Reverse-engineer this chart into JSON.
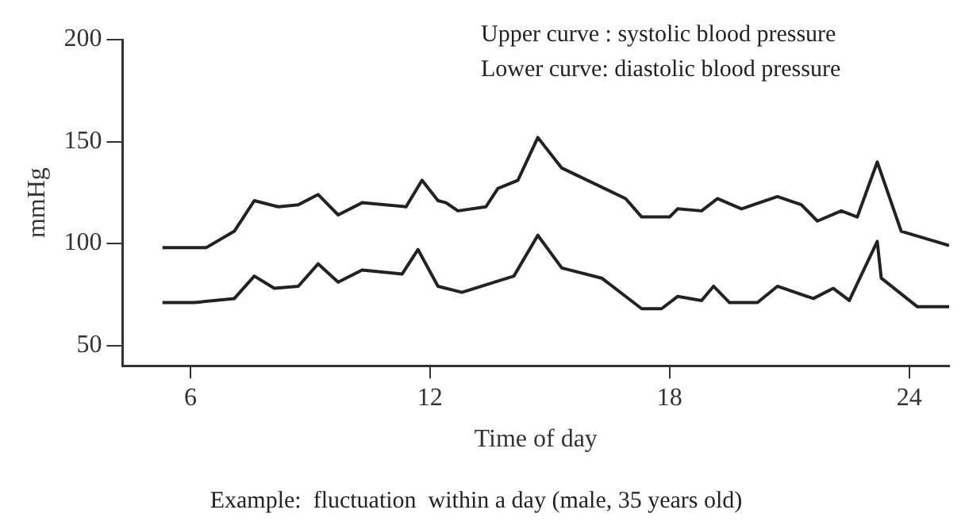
{
  "chart_data": {
    "type": "line",
    "xlabel": "Time of day",
    "ylabel": "mmHg",
    "annotations": [
      "Upper curve : systolic blood pressure",
      "Lower curve: diastolic blood pressure",
      "Example:  fluctuation  within a day (male, 35 years old)"
    ],
    "series": [
      {
        "color": "#222222",
        "x": [
          5.3,
          6.4,
          7.1,
          7.6,
          8.2,
          8.7,
          9.2,
          9.7,
          10.3,
          11.4,
          11.8,
          12.2,
          12.4,
          12.7,
          13.4,
          13.7,
          14.2,
          14.7,
          15.3,
          16.9,
          17.3,
          18.0,
          18.2,
          18.8,
          19.2,
          19.8,
          20.7,
          21.3,
          21.7,
          22.3,
          22.7,
          23.2,
          23.8,
          25.0
        ],
        "values": [
          98,
          98,
          106,
          121,
          118,
          119,
          124,
          114,
          120,
          118,
          131,
          121,
          120,
          116,
          118,
          127,
          131,
          152,
          137,
          122,
          113,
          113,
          117,
          116,
          122,
          117,
          123,
          119,
          111,
          116,
          113,
          140,
          106,
          99
        ]
      },
      {
        "color": "#222222",
        "x": [
          5.3,
          6.1,
          7.1,
          7.6,
          8.1,
          8.7,
          9.2,
          9.7,
          10.3,
          11.3,
          11.7,
          12.2,
          12.8,
          14.1,
          14.7,
          15.3,
          16.3,
          17.3,
          17.8,
          18.2,
          18.8,
          19.1,
          19.5,
          20.2,
          20.7,
          21.6,
          22.1,
          22.5,
          23.2,
          23.3,
          24.2,
          25.0
        ],
        "values": [
          71,
          71,
          73,
          84,
          78,
          79,
          90,
          81,
          87,
          85,
          97,
          79,
          76,
          84,
          104,
          88,
          83,
          68,
          68,
          74,
          72,
          79,
          71,
          71,
          79,
          73,
          78,
          72,
          101,
          83,
          69,
          69
        ]
      }
    ],
    "xlim": [
      4.3,
      25
    ],
    "xticks": [
      6,
      12,
      18,
      24
    ],
    "ylim": [
      40,
      200
    ],
    "yticks": [
      50,
      100,
      150,
      200
    ],
    "grid": false,
    "legend": false,
    "marker": "none",
    "line_style": "solid"
  }
}
